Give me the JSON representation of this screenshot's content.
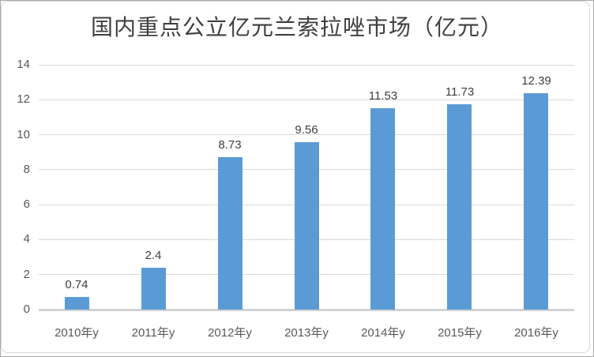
{
  "chart_data": {
    "type": "bar",
    "title": "国内重点公立亿元兰索拉唑市场（亿元）",
    "categories": [
      "2010年y",
      "2011年y",
      "2012年y",
      "2013年y",
      "2014年y",
      "2015年y",
      "2016年y"
    ],
    "values": [
      0.74,
      2.4,
      8.73,
      9.56,
      11.53,
      11.73,
      12.39
    ],
    "data_labels": [
      "0.74",
      "2.4",
      "8.73",
      "9.56",
      "11.53",
      "11.73",
      "12.39"
    ],
    "xlabel": "",
    "ylabel": "",
    "ylim": [
      0,
      14
    ],
    "yticks": [
      0,
      2,
      4,
      6,
      8,
      10,
      12,
      14
    ],
    "grid": true,
    "legend_position": "none",
    "colors": {
      "bar_fill": "#5B9BD5",
      "gridline": "#d9d9d9",
      "axis_line": "#d2d2d2",
      "tick_label": "#595959",
      "data_label": "#404040",
      "title": "#3f3f3f"
    }
  }
}
